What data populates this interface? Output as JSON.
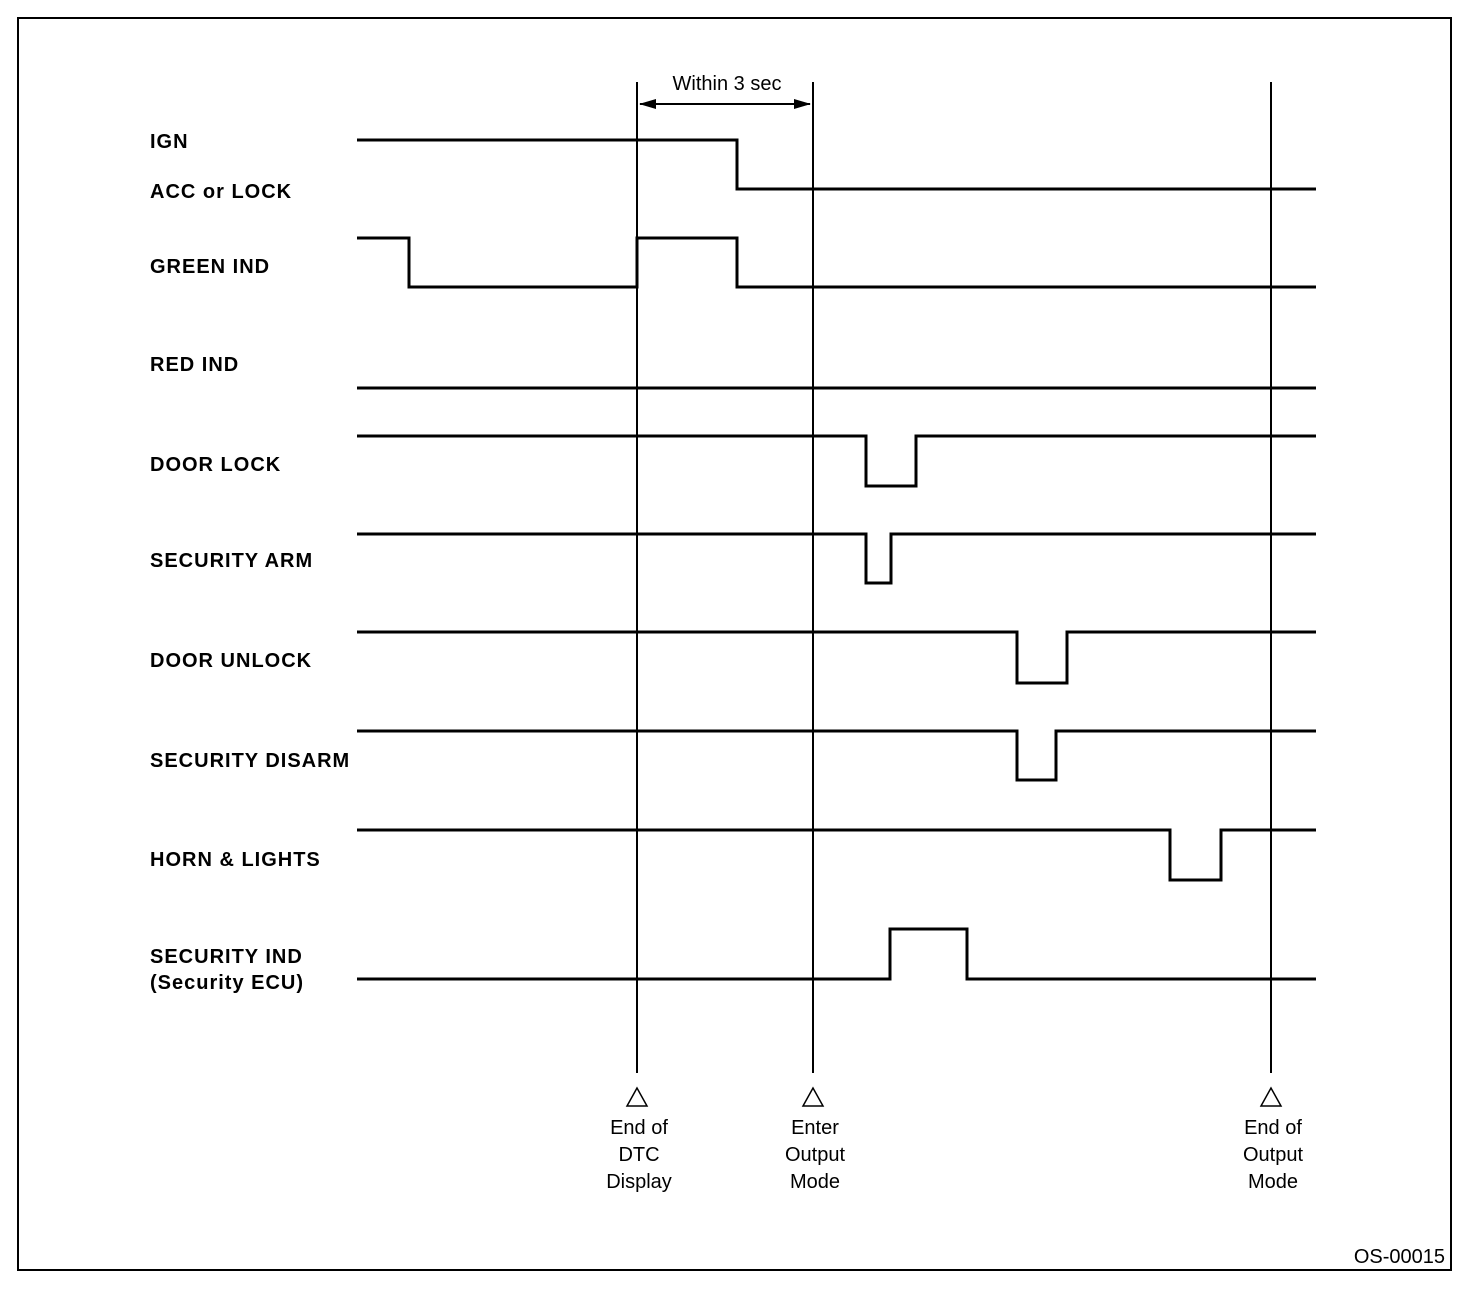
{
  "signals": [
    {
      "label": "IGN",
      "label2": "ACC or LOCK"
    },
    {
      "label": "GREEN IND"
    },
    {
      "label": "RED IND"
    },
    {
      "label": "DOOR LOCK"
    },
    {
      "label": "SECURITY ARM"
    },
    {
      "label": "DOOR UNLOCK"
    },
    {
      "label": "SECURITY DISARM"
    },
    {
      "label": "HORN & LIGHTS"
    },
    {
      "label": "SECURITY IND",
      "label2": "(Security ECU)"
    }
  ],
  "interval": {
    "label": "Within 3 sec"
  },
  "markers": [
    {
      "lines": [
        "End of",
        "DTC",
        "Display"
      ]
    },
    {
      "lines": [
        "Enter",
        "Output",
        "Mode"
      ]
    },
    {
      "lines": [
        "End of",
        "Output",
        "Mode"
      ]
    }
  ],
  "figure_id": "OS-00015"
}
